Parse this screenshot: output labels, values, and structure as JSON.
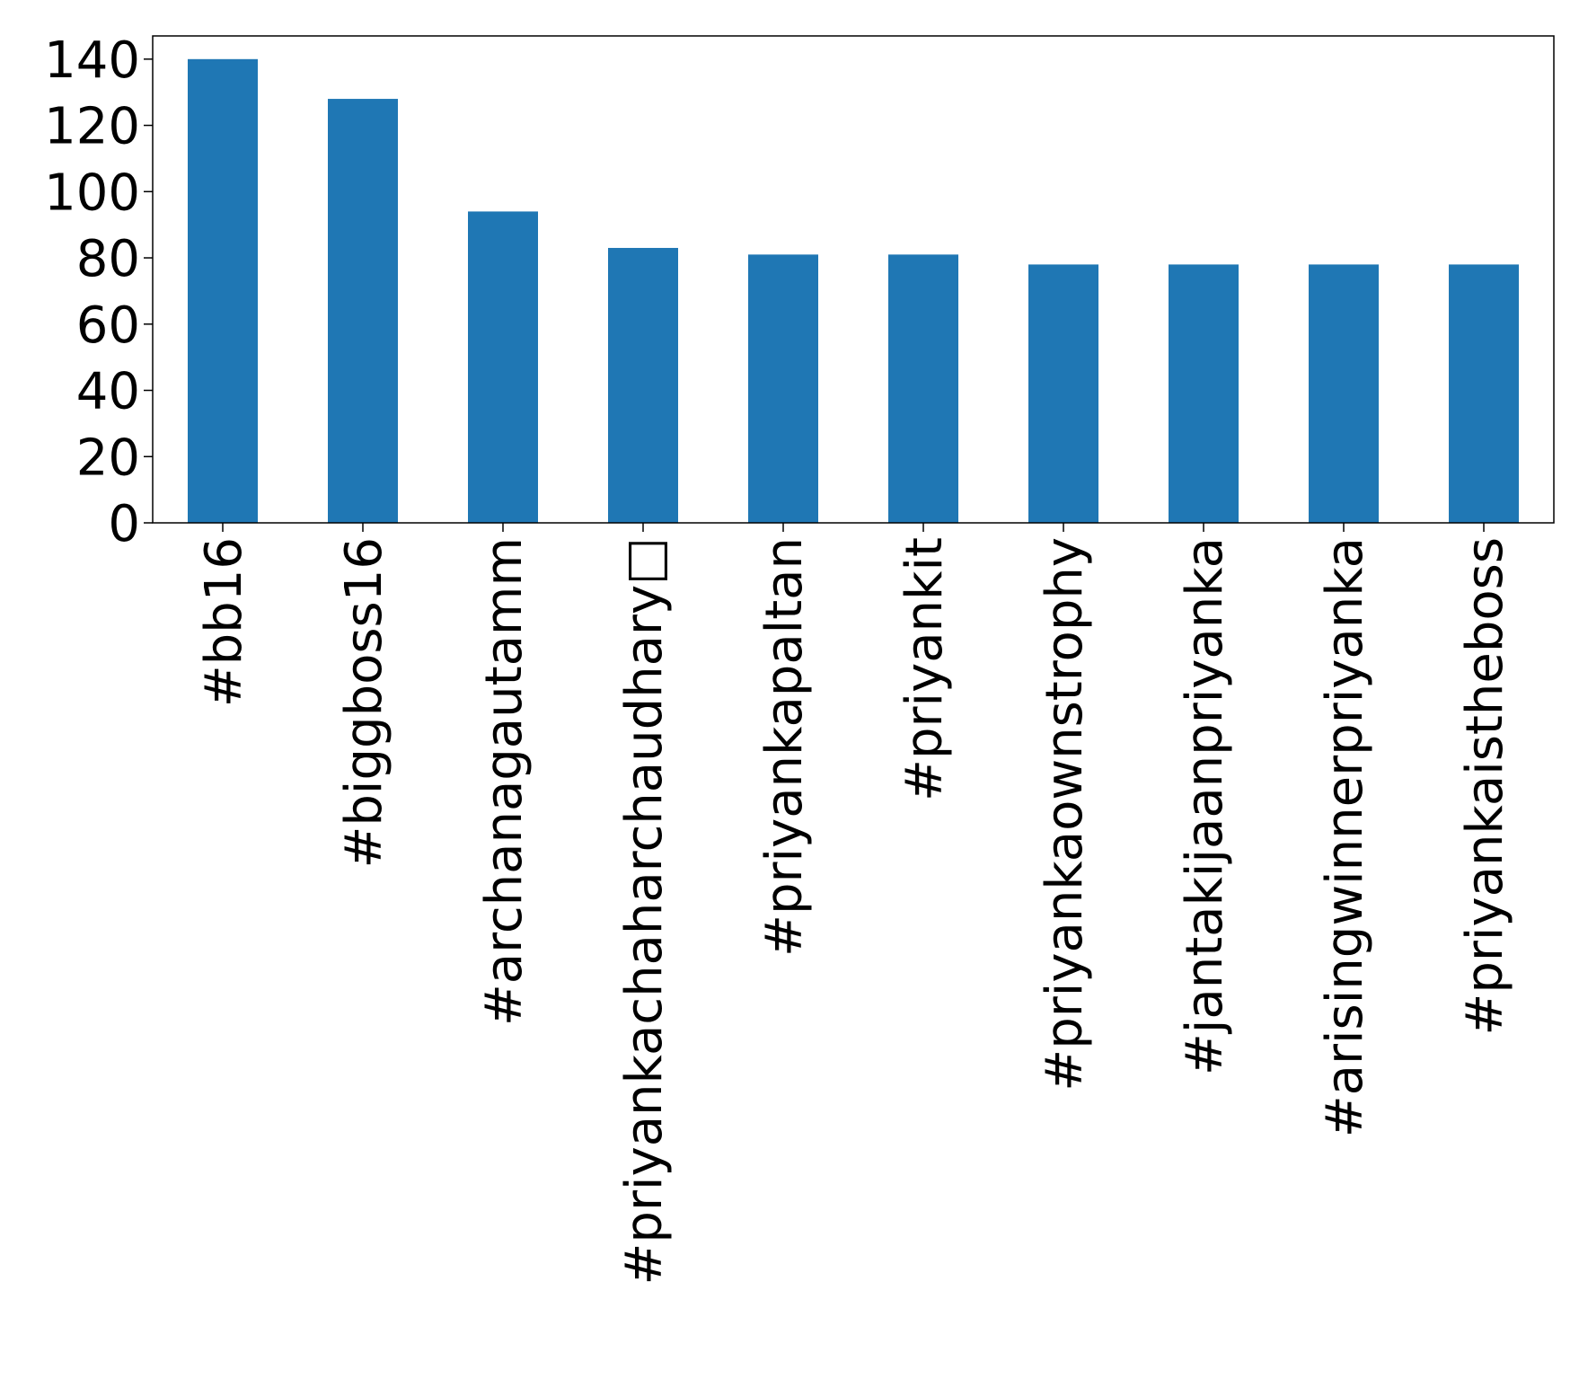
{
  "chart_data": {
    "type": "bar",
    "title": "",
    "xlabel": "",
    "ylabel": "",
    "categories": [
      "#bb16",
      "#biggboss16",
      "#archanagautamm",
      "#priyankachaharchaudhary□",
      "#priyankapaltan",
      "#priyankit",
      "#priyankaownstrophy",
      "#jantakijaanpriyanka",
      "#arisingwinnerpriyanka",
      "#priyankaistheboss"
    ],
    "values": [
      140,
      128,
      94,
      83,
      81,
      81,
      78,
      78,
      78,
      78
    ],
    "ylim": [
      0,
      147
    ],
    "yticks": [
      0,
      20,
      40,
      60,
      80,
      100,
      120,
      140
    ],
    "ytick_labels": [
      "0",
      "20",
      "40",
      "60",
      "80",
      "100",
      "120",
      "140"
    ],
    "grid": false,
    "legend": "none",
    "bar_color": "#1f77b4"
  }
}
